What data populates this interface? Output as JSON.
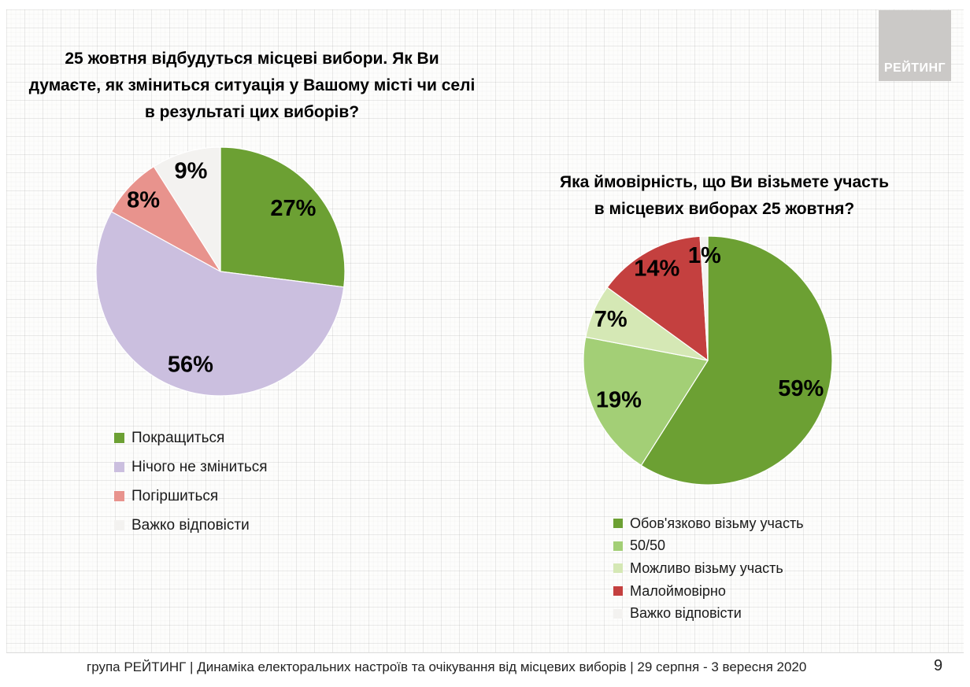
{
  "logo": {
    "text": "РЕЙТИНГ"
  },
  "footer": {
    "text": "група РЕЙТИНГ | Динаміка електоральних настроїв та очікування від місцевих виборів | 29 серпня - 3 вересня 2020",
    "page_number": "9"
  },
  "chart_data": [
    {
      "type": "pie",
      "title": "25 жовтня відбудуться місцеві вибори. Як Ви думаєте, як зміниться ситуація у Вашому місті чи селі в результаті цих виборів?",
      "title_lines": [
        "25 жовтня відбудуться місцеві вибори. Як Ви",
        "думаєте, як зміниться ситуація у Вашому місті чи селі",
        "в результаті цих виборів?"
      ],
      "categories": [
        "Покращиться",
        "Нічого не зміниться",
        "Погіршиться",
        "Важко відповісти"
      ],
      "values": [
        27,
        56,
        8,
        9
      ],
      "labels": [
        "27%",
        "56%",
        "8%",
        "9%"
      ],
      "colors": [
        "#6CA033",
        "#CBBFDF",
        "#E8938D",
        "#F3F2F0"
      ],
      "start_angle": "12 o'clock",
      "direction": "clockwise",
      "legend_position": "bottom-left"
    },
    {
      "type": "pie",
      "title": "Яка ймовірність, що Ви візьмете участь в місцевих виборах 25 жовтня?",
      "title_lines": [
        "Яка ймовірність, що Ви візьмете участь",
        "в місцевих виборах 25 жовтня?"
      ],
      "categories": [
        "Обов'язково візьму участь",
        "50/50",
        "Можливо візьму участь",
        "Малоймовірно",
        "Важко відповісти"
      ],
      "values": [
        59,
        19,
        7,
        14,
        1
      ],
      "labels": [
        "59%",
        "19%",
        "7%",
        "14%",
        "1%"
      ],
      "colors": [
        "#6CA033",
        "#A3CF76",
        "#D5E8B5",
        "#C4403F",
        "#F3F2F0"
      ],
      "start_angle": "12 o'clock",
      "direction": "clockwise",
      "legend_position": "bottom-left"
    }
  ]
}
